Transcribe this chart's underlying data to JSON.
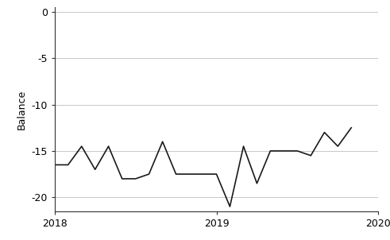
{
  "x": [
    2018.0,
    2018.083,
    2018.167,
    2018.25,
    2018.333,
    2018.417,
    2018.5,
    2018.583,
    2018.667,
    2018.75,
    2018.833,
    2018.917,
    2019.0,
    2019.083,
    2019.167,
    2019.25,
    2019.333,
    2019.417,
    2019.5,
    2019.583,
    2019.667,
    2019.75,
    2019.833
  ],
  "y": [
    -16.5,
    -16.5,
    -14.5,
    -17.0,
    -14.5,
    -18.0,
    -18.0,
    -17.5,
    -14.0,
    -17.5,
    -17.5,
    -17.5,
    -17.5,
    -21.0,
    -14.5,
    -18.5,
    -15.0,
    -15.0,
    -15.0,
    -15.5,
    -13.0,
    -14.5,
    -12.5
  ],
  "line_color": "#1a1a1a",
  "line_width": 1.2,
  "xlim": [
    2018,
    2020
  ],
  "ylim": [
    -21.5,
    0.5
  ],
  "yticks": [
    0,
    -5,
    -10,
    -15,
    -20
  ],
  "xticks": [
    2018,
    2019,
    2020
  ],
  "ylabel": "Balance",
  "background_color": "#ffffff",
  "grid_color": "#c8c8c8",
  "grid_linewidth": 0.7,
  "spine_color": "#333333",
  "tick_color": "#333333"
}
